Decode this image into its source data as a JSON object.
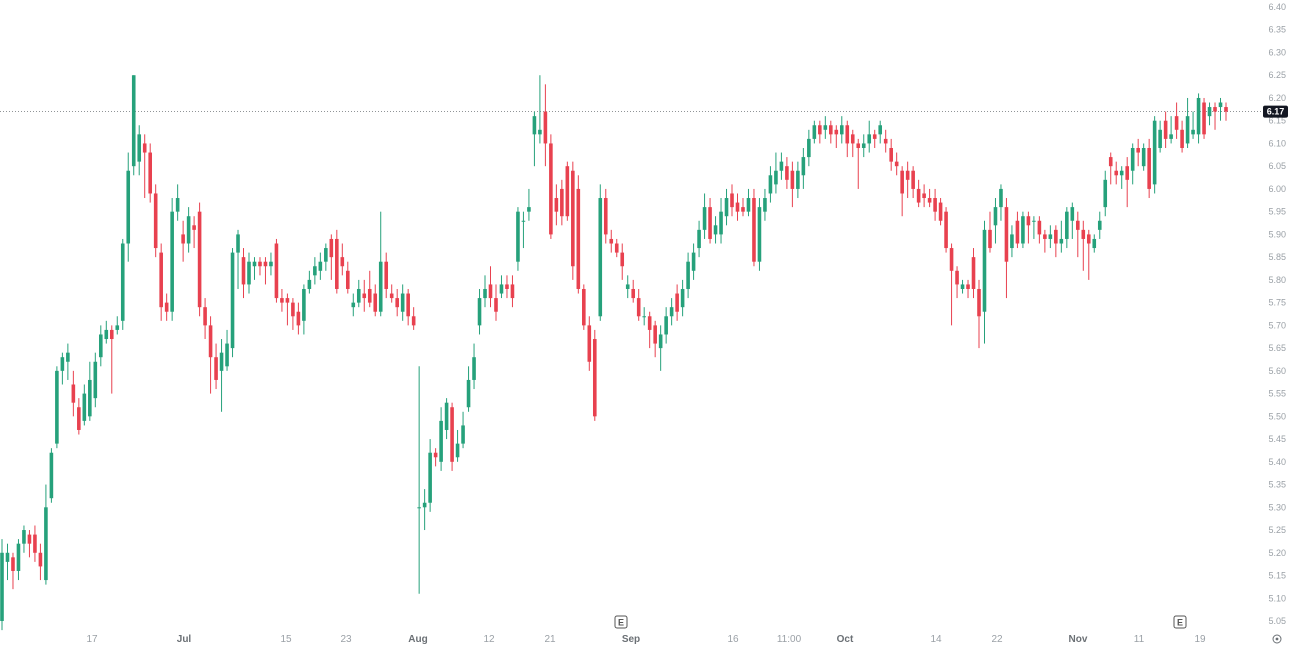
{
  "chart_data": {
    "type": "candlestick",
    "y_axis": {
      "min": 5.05,
      "max": 6.4,
      "step": 0.05,
      "ticks": [
        "6.40",
        "6.35",
        "6.30",
        "6.25",
        "6.20",
        "6.15",
        "6.10",
        "6.05",
        "6.00",
        "5.95",
        "5.90",
        "5.85",
        "5.80",
        "5.75",
        "5.70",
        "5.65",
        "5.60",
        "5.55",
        "5.50",
        "5.45",
        "5.40",
        "5.35",
        "5.30",
        "5.25",
        "5.20",
        "5.15",
        "5.10",
        "5.05"
      ]
    },
    "x_axis": {
      "ticks": [
        {
          "label": "17",
          "major": false
        },
        {
          "label": "Jul",
          "major": true
        },
        {
          "label": "15",
          "major": false
        },
        {
          "label": "23",
          "major": false
        },
        {
          "label": "Aug",
          "major": true
        },
        {
          "label": "12",
          "major": false
        },
        {
          "label": "21",
          "major": false
        },
        {
          "label": "Sep",
          "major": true
        },
        {
          "label": "16",
          "major": false
        },
        {
          "label": "11:00",
          "major": false
        },
        {
          "label": "Oct",
          "major": true
        },
        {
          "label": "14",
          "major": false
        },
        {
          "label": "22",
          "major": false
        },
        {
          "label": "Nov",
          "major": true
        },
        {
          "label": "11",
          "major": false
        },
        {
          "label": "19",
          "major": false
        }
      ]
    },
    "last_price": {
      "value": 6.17,
      "label": "6.17"
    },
    "earnings_markers": [
      "E",
      "E"
    ],
    "colors": {
      "up": "#26a17b",
      "down": "#e8414f",
      "price_bg": "#131722",
      "grid_text": "#9aa0a6"
    },
    "candles": [
      [
        5.05,
        5.2,
        5.23,
        5.03
      ],
      [
        5.18,
        5.2,
        5.22,
        5.14
      ],
      [
        5.19,
        5.16,
        5.2,
        5.12
      ],
      [
        5.16,
        5.22,
        5.23,
        5.14
      ],
      [
        5.22,
        5.25,
        5.26,
        5.2
      ],
      [
        5.24,
        5.22,
        5.25,
        5.19
      ],
      [
        5.24,
        5.2,
        5.26,
        5.18
      ],
      [
        5.2,
        5.17,
        5.22,
        5.14
      ],
      [
        5.14,
        5.3,
        5.35,
        5.13
      ],
      [
        5.32,
        5.42,
        5.43,
        5.31
      ],
      [
        5.44,
        5.6,
        5.61,
        5.43
      ],
      [
        5.6,
        5.63,
        5.64,
        5.57
      ],
      [
        5.62,
        5.64,
        5.66,
        5.58
      ],
      [
        5.57,
        5.53,
        5.6,
        5.5
      ],
      [
        5.52,
        5.47,
        5.54,
        5.46
      ],
      [
        5.49,
        5.55,
        5.57,
        5.48
      ],
      [
        5.5,
        5.58,
        5.62,
        5.49
      ],
      [
        5.54,
        5.62,
        5.64,
        5.52
      ],
      [
        5.63,
        5.68,
        5.7,
        5.61
      ],
      [
        5.67,
        5.69,
        5.71,
        5.66
      ],
      [
        5.69,
        5.67,
        5.7,
        5.55
      ],
      [
        5.69,
        5.7,
        5.72,
        5.68
      ],
      [
        5.71,
        5.88,
        5.89,
        5.69
      ],
      [
        5.88,
        6.04,
        6.08,
        5.84
      ],
      [
        6.05,
        6.25,
        6.25,
        6.03
      ],
      [
        6.06,
        6.12,
        6.14,
        6.03
      ],
      [
        6.1,
        6.08,
        6.12,
        5.98
      ],
      [
        6.08,
        5.99,
        6.1,
        5.97
      ],
      [
        5.99,
        5.87,
        6.01,
        5.85
      ],
      [
        5.86,
        5.74,
        5.88,
        5.71
      ],
      [
        5.75,
        5.73,
        5.77,
        5.71
      ],
      [
        5.73,
        5.95,
        5.98,
        5.71
      ],
      [
        5.95,
        5.98,
        6.01,
        5.93
      ],
      [
        5.9,
        5.88,
        5.93,
        5.84
      ],
      [
        5.88,
        5.94,
        5.96,
        5.86
      ],
      [
        5.92,
        5.91,
        5.94,
        5.87
      ],
      [
        5.95,
        5.74,
        5.97,
        5.72
      ],
      [
        5.74,
        5.7,
        5.76,
        5.67
      ],
      [
        5.7,
        5.63,
        5.72,
        5.55
      ],
      [
        5.63,
        5.58,
        5.66,
        5.56
      ],
      [
        5.6,
        5.64,
        5.67,
        5.51
      ],
      [
        5.61,
        5.66,
        5.69,
        5.6
      ],
      [
        5.65,
        5.86,
        5.87,
        5.63
      ],
      [
        5.86,
        5.9,
        5.91,
        5.78
      ],
      [
        5.85,
        5.79,
        5.87,
        5.76
      ],
      [
        5.79,
        5.84,
        5.86,
        5.77
      ],
      [
        5.83,
        5.84,
        5.85,
        5.8
      ],
      [
        5.84,
        5.83,
        5.85,
        5.81
      ],
      [
        5.84,
        5.83,
        5.85,
        5.79
      ],
      [
        5.83,
        5.84,
        5.86,
        5.81
      ],
      [
        5.88,
        5.76,
        5.89,
        5.75
      ],
      [
        5.76,
        5.75,
        5.78,
        5.73
      ],
      [
        5.76,
        5.75,
        5.77,
        5.7
      ],
      [
        5.75,
        5.72,
        5.76,
        5.69
      ],
      [
        5.73,
        5.7,
        5.75,
        5.68
      ],
      [
        5.71,
        5.78,
        5.79,
        5.68
      ],
      [
        5.78,
        5.8,
        5.82,
        5.77
      ],
      [
        5.81,
        5.83,
        5.85,
        5.79
      ],
      [
        5.82,
        5.84,
        5.86,
        5.8
      ],
      [
        5.84,
        5.87,
        5.88,
        5.82
      ],
      [
        5.89,
        5.85,
        5.9,
        5.8
      ],
      [
        5.89,
        5.78,
        5.91,
        5.77
      ],
      [
        5.85,
        5.83,
        5.88,
        5.81
      ],
      [
        5.82,
        5.78,
        5.84,
        5.77
      ],
      [
        5.74,
        5.75,
        5.77,
        5.72
      ],
      [
        5.75,
        5.78,
        5.8,
        5.74
      ],
      [
        5.77,
        5.76,
        5.8,
        5.73
      ],
      [
        5.78,
        5.75,
        5.82,
        5.74
      ],
      [
        5.77,
        5.73,
        5.79,
        5.72
      ],
      [
        5.73,
        5.84,
        5.95,
        5.72
      ],
      [
        5.84,
        5.78,
        5.86,
        5.76
      ],
      [
        5.77,
        5.76,
        5.79,
        5.75
      ],
      [
        5.76,
        5.74,
        5.78,
        5.72
      ],
      [
        5.73,
        5.77,
        5.79,
        5.71
      ],
      [
        5.77,
        5.72,
        5.78,
        5.7
      ],
      [
        5.72,
        5.7,
        5.74,
        5.69
      ],
      [
        5.3,
        5.3,
        5.61,
        5.11
      ],
      [
        5.3,
        5.31,
        5.34,
        5.25
      ],
      [
        5.31,
        5.42,
        5.45,
        5.29
      ],
      [
        5.42,
        5.41,
        5.43,
        5.39
      ],
      [
        5.4,
        5.49,
        5.52,
        5.38
      ],
      [
        5.47,
        5.53,
        5.54,
        5.45
      ],
      [
        5.52,
        5.4,
        5.53,
        5.38
      ],
      [
        5.41,
        5.44,
        5.47,
        5.4
      ],
      [
        5.44,
        5.48,
        5.51,
        5.43
      ],
      [
        5.52,
        5.58,
        5.61,
        5.51
      ],
      [
        5.58,
        5.63,
        5.66,
        5.56
      ],
      [
        5.7,
        5.76,
        5.78,
        5.68
      ],
      [
        5.76,
        5.78,
        5.81,
        5.74
      ],
      [
        5.79,
        5.76,
        5.83,
        5.74
      ],
      [
        5.76,
        5.73,
        5.79,
        5.71
      ],
      [
        5.77,
        5.79,
        5.81,
        5.76
      ],
      [
        5.79,
        5.78,
        5.81,
        5.76
      ],
      [
        5.79,
        5.76,
        5.81,
        5.74
      ],
      [
        5.84,
        5.95,
        5.96,
        5.82
      ],
      [
        5.93,
        5.93,
        5.95,
        5.87
      ],
      [
        5.95,
        5.96,
        6.0,
        5.93
      ],
      [
        6.12,
        6.16,
        6.17,
        6.05
      ],
      [
        6.12,
        6.13,
        6.25,
        6.1
      ],
      [
        6.17,
        6.1,
        6.23,
        6.05
      ],
      [
        6.1,
        5.9,
        6.12,
        5.89
      ],
      [
        5.98,
        5.95,
        6.01,
        5.92
      ],
      [
        6.0,
        5.94,
        6.02,
        5.92
      ],
      [
        6.05,
        5.94,
        6.06,
        5.93
      ],
      [
        6.04,
        5.83,
        6.06,
        5.8
      ],
      [
        6.0,
        5.78,
        6.03,
        5.77
      ],
      [
        5.78,
        5.7,
        5.79,
        5.69
      ],
      [
        5.7,
        5.62,
        5.72,
        5.6
      ],
      [
        5.67,
        5.5,
        5.69,
        5.49
      ],
      [
        5.72,
        5.98,
        6.01,
        5.71
      ],
      [
        5.98,
        5.9,
        6.0,
        5.88
      ],
      [
        5.89,
        5.88,
        5.91,
        5.86
      ],
      [
        5.88,
        5.86,
        5.89,
        5.85
      ],
      [
        5.86,
        5.83,
        5.88,
        5.8
      ],
      [
        5.78,
        5.79,
        5.81,
        5.76
      ],
      [
        5.78,
        5.76,
        5.8,
        5.75
      ],
      [
        5.76,
        5.72,
        5.78,
        5.71
      ],
      [
        5.72,
        5.72,
        5.74,
        5.7
      ],
      [
        5.72,
        5.69,
        5.73,
        5.65
      ],
      [
        5.7,
        5.66,
        5.71,
        5.63
      ],
      [
        5.65,
        5.68,
        5.7,
        5.6
      ],
      [
        5.68,
        5.72,
        5.74,
        5.66
      ],
      [
        5.72,
        5.74,
        5.76,
        5.7
      ],
      [
        5.77,
        5.73,
        5.79,
        5.71
      ],
      [
        5.74,
        5.78,
        5.8,
        5.72
      ],
      [
        5.78,
        5.84,
        5.86,
        5.76
      ],
      [
        5.82,
        5.86,
        5.88,
        5.8
      ],
      [
        5.87,
        5.91,
        5.93,
        5.85
      ],
      [
        5.91,
        5.96,
        5.99,
        5.89
      ],
      [
        5.96,
        5.89,
        5.98,
        5.88
      ],
      [
        5.9,
        5.92,
        5.94,
        5.88
      ],
      [
        5.9,
        5.95,
        5.98,
        5.88
      ],
      [
        5.94,
        5.98,
        6.0,
        5.92
      ],
      [
        5.99,
        5.96,
        6.01,
        5.94
      ],
      [
        5.97,
        5.95,
        5.99,
        5.93
      ],
      [
        5.96,
        5.95,
        5.98,
        5.94
      ],
      [
        5.95,
        5.98,
        6.0,
        5.94
      ],
      [
        5.98,
        5.84,
        6.0,
        5.83
      ],
      [
        5.84,
        5.96,
        5.98,
        5.82
      ],
      [
        5.95,
        5.98,
        6.0,
        5.93
      ],
      [
        5.99,
        6.03,
        6.05,
        5.97
      ],
      [
        6.01,
        6.04,
        6.08,
        5.99
      ],
      [
        6.04,
        6.06,
        6.08,
        6.02
      ],
      [
        6.05,
        6.02,
        6.07,
        6.0
      ],
      [
        6.04,
        6.0,
        6.06,
        5.96
      ],
      [
        6.0,
        6.04,
        6.06,
        5.98
      ],
      [
        6.03,
        6.07,
        6.09,
        6.0
      ],
      [
        6.07,
        6.11,
        6.13,
        6.05
      ],
      [
        6.11,
        6.14,
        6.15,
        6.1
      ],
      [
        6.14,
        6.12,
        6.15,
        6.1
      ],
      [
        6.13,
        6.14,
        6.16,
        6.11
      ],
      [
        6.14,
        6.12,
        6.15,
        6.1
      ],
      [
        6.13,
        6.12,
        6.14,
        6.09
      ],
      [
        6.12,
        6.14,
        6.16,
        6.1
      ],
      [
        6.14,
        6.1,
        6.15,
        6.07
      ],
      [
        6.12,
        6.1,
        6.13,
        6.07
      ],
      [
        6.1,
        6.09,
        6.11,
        6.0
      ],
      [
        6.09,
        6.1,
        6.12,
        6.07
      ],
      [
        6.1,
        6.12,
        6.15,
        6.08
      ],
      [
        6.12,
        6.11,
        6.13,
        6.09
      ],
      [
        6.12,
        6.14,
        6.15,
        6.1
      ],
      [
        6.11,
        6.1,
        6.13,
        6.08
      ],
      [
        6.09,
        6.06,
        6.11,
        6.04
      ],
      [
        6.06,
        6.05,
        6.08,
        6.03
      ],
      [
        6.04,
        5.99,
        6.05,
        5.94
      ],
      [
        6.04,
        6.02,
        6.06,
        5.98
      ],
      [
        6.04,
        6.0,
        6.05,
        5.98
      ],
      [
        6.0,
        5.97,
        6.02,
        5.96
      ],
      [
        5.99,
        5.98,
        6.01,
        5.96
      ],
      [
        5.98,
        5.97,
        6.0,
        5.96
      ],
      [
        5.98,
        5.95,
        6.0,
        5.93
      ],
      [
        5.97,
        5.93,
        5.98,
        5.92
      ],
      [
        5.95,
        5.87,
        5.96,
        5.86
      ],
      [
        5.87,
        5.82,
        5.88,
        5.7
      ],
      [
        5.82,
        5.79,
        5.83,
        5.76
      ],
      [
        5.78,
        5.79,
        5.8,
        5.77
      ],
      [
        5.79,
        5.78,
        5.8,
        5.76
      ],
      [
        5.85,
        5.78,
        5.87,
        5.76
      ],
      [
        5.78,
        5.72,
        5.8,
        5.65
      ],
      [
        5.73,
        5.91,
        5.93,
        5.66
      ],
      [
        5.91,
        5.87,
        5.95,
        5.86
      ],
      [
        5.92,
        5.96,
        5.98,
        5.88
      ],
      [
        5.96,
        6.0,
        6.01,
        5.93
      ],
      [
        5.96,
        5.84,
        5.98,
        5.76
      ],
      [
        5.87,
        5.9,
        5.92,
        5.85
      ],
      [
        5.93,
        5.88,
        5.95,
        5.87
      ],
      [
        5.88,
        5.94,
        5.95,
        5.87
      ],
      [
        5.94,
        5.92,
        5.95,
        5.88
      ],
      [
        5.93,
        5.93,
        5.94,
        5.89
      ],
      [
        5.93,
        5.9,
        5.94,
        5.88
      ],
      [
        5.9,
        5.89,
        5.91,
        5.86
      ],
      [
        5.89,
        5.9,
        5.92,
        5.87
      ],
      [
        5.91,
        5.88,
        5.92,
        5.85
      ],
      [
        5.88,
        5.89,
        5.93,
        5.86
      ],
      [
        5.89,
        5.95,
        5.96,
        5.87
      ],
      [
        5.93,
        5.96,
        5.97,
        5.89
      ],
      [
        5.93,
        5.91,
        5.95,
        5.85
      ],
      [
        5.91,
        5.89,
        5.93,
        5.82
      ],
      [
        5.9,
        5.88,
        5.91,
        5.8
      ],
      [
        5.87,
        5.89,
        5.9,
        5.86
      ],
      [
        5.91,
        5.93,
        5.95,
        5.89
      ],
      [
        5.96,
        6.02,
        6.04,
        5.94
      ],
      [
        6.07,
        6.05,
        6.08,
        6.01
      ],
      [
        6.04,
        6.03,
        6.06,
        6.01
      ],
      [
        6.03,
        6.04,
        6.05,
        6.0
      ],
      [
        6.05,
        6.02,
        6.07,
        5.96
      ],
      [
        6.04,
        6.09,
        6.1,
        6.01
      ],
      [
        6.09,
        6.08,
        6.11,
        6.05
      ],
      [
        6.05,
        6.09,
        6.1,
        6.04
      ],
      [
        6.09,
        6.0,
        6.11,
        5.98
      ],
      [
        6.01,
        6.15,
        6.16,
        5.99
      ],
      [
        6.09,
        6.13,
        6.15,
        6.08
      ],
      [
        6.15,
        6.11,
        6.17,
        6.09
      ],
      [
        6.11,
        6.12,
        6.16,
        6.1
      ],
      [
        6.16,
        6.13,
        6.19,
        6.11
      ],
      [
        6.13,
        6.09,
        6.15,
        6.08
      ],
      [
        6.1,
        6.16,
        6.2,
        6.09
      ],
      [
        6.12,
        6.13,
        6.17,
        6.11
      ],
      [
        6.12,
        6.2,
        6.21,
        6.1
      ],
      [
        6.19,
        6.12,
        6.2,
        6.11
      ],
      [
        6.16,
        6.18,
        6.19,
        6.14
      ],
      [
        6.18,
        6.17,
        6.19,
        6.13
      ],
      [
        6.18,
        6.19,
        6.2,
        6.15
      ],
      [
        6.18,
        6.17,
        6.19,
        6.15
      ]
    ]
  }
}
